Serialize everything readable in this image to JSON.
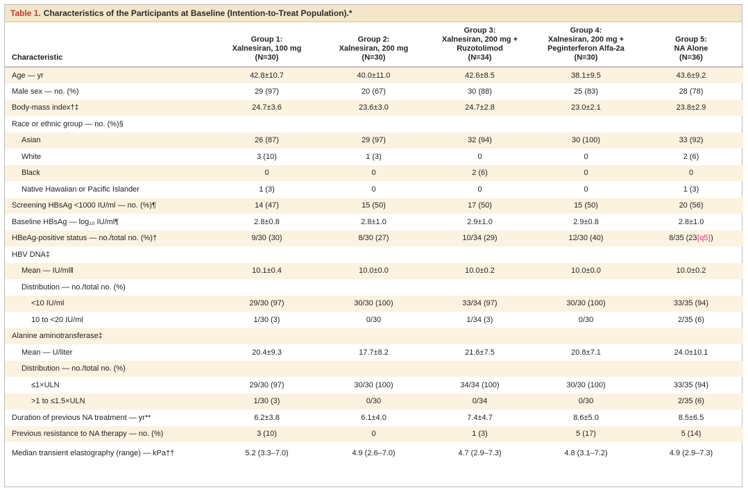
{
  "title": {
    "tag": "Table 1.",
    "text": "Characteristics of the Participants at Baseline (Intention-to-Treat Population).*"
  },
  "header": {
    "characteristic": "Characteristic",
    "groups": [
      [
        "Group 1:",
        "Xalnesiran, 100 mg",
        "(N=30)"
      ],
      [
        "Group 2:",
        "Xalnesiran, 200 mg",
        "(N=30)"
      ],
      [
        "Group 3:",
        "Xalnesiran, 200 mg +",
        "Ruzotolimod",
        "(N=34)"
      ],
      [
        "Group 4:",
        "Xalnesiran, 200 mg +",
        "Peginterferon Alfa-2a",
        "(N=30)"
      ],
      [
        "Group 5:",
        "NA Alone",
        "(N=36)"
      ]
    ]
  },
  "rows": [
    {
      "label": "Age — yr",
      "indent": 0,
      "values": [
        "42.8±10.7",
        "40.0±11.0",
        "42.6±8.5",
        "38.1±9.5",
        "43.6±9.2"
      ]
    },
    {
      "label": "Male sex — no. (%)",
      "indent": 0,
      "values": [
        "29 (97)",
        "20 (67)",
        "30 (88)",
        "25 (83)",
        "28 (78)"
      ]
    },
    {
      "label": "Body-mass index†‡",
      "indent": 0,
      "values": [
        "24.7±3.6",
        "23.6±3.0",
        "24.7±2.8",
        "23.0±2.1",
        "23.8±2.9"
      ]
    },
    {
      "label": "Race or ethnic group — no. (%)§",
      "indent": 0,
      "values": [
        "",
        "",
        "",
        "",
        ""
      ]
    },
    {
      "label": "Asian",
      "indent": 1,
      "values": [
        "26 (87)",
        "29 (97)",
        "32 (94)",
        "30 (100)",
        "33 (92)"
      ]
    },
    {
      "label": "White",
      "indent": 1,
      "values": [
        "3 (10)",
        "1 (3)",
        "0",
        "0",
        "2 (6)"
      ]
    },
    {
      "label": "Black",
      "indent": 1,
      "values": [
        "0",
        "0",
        "2 (6)",
        "0",
        "0"
      ]
    },
    {
      "label": "Native Hawaiian or Pacific Islander",
      "indent": 1,
      "values": [
        "1 (3)",
        "0",
        "0",
        "0",
        "1 (3)"
      ]
    },
    {
      "label": "Screening HBsAg <1000 IU/ml — no. (%)¶",
      "indent": 0,
      "values": [
        "14 (47)",
        "15 (50)",
        "17 (50)",
        "15 (50)",
        "20 (56)"
      ]
    },
    {
      "label": "Baseline HBsAg — log₁₀ IU/ml¶",
      "indent": 0,
      "values": [
        "2.8±0.8",
        "2.8±1.0",
        "2.9±1.0",
        "2.9±0.8",
        "2.8±1.0"
      ]
    },
    {
      "label": "HBeAg-positive status — no./total no. (%)†",
      "indent": 0,
      "values": [
        "9/30 (30)",
        "8/30 (27)",
        "10/34 (29)",
        "12/30 (40)",
        "8/35 (23{q5})"
      ]
    },
    {
      "label": "HBV DNA‡",
      "indent": 0,
      "values": [
        "",
        "",
        "",
        "",
        ""
      ]
    },
    {
      "label": "Mean — IU/ml‖",
      "indent": 1,
      "values": [
        "10.1±0.4",
        "10.0±0.0",
        "10.0±0.2",
        "10.0±0.0",
        "10.0±0.2"
      ]
    },
    {
      "label": "Distribution — no./total no. (%)",
      "indent": 1,
      "values": [
        "",
        "",
        "",
        "",
        ""
      ]
    },
    {
      "label": "<10 IU/ml",
      "indent": 2,
      "values": [
        "29/30 (97)",
        "30/30 (100)",
        "33/34 (97)",
        "30/30 (100)",
        "33/35 (94)"
      ]
    },
    {
      "label": "10 to <20 IU/ml",
      "indent": 2,
      "values": [
        "1/30 (3)",
        "0/30",
        "1/34 (3)",
        "0/30",
        "2/35 (6)"
      ]
    },
    {
      "label": "Alanine aminotransferase‡",
      "indent": 0,
      "values": [
        "",
        "",
        "",
        "",
        ""
      ]
    },
    {
      "label": "Mean — U/liter",
      "indent": 1,
      "values": [
        "20.4±9.3",
        "17.7±8.2",
        "21.6±7.5",
        "20.8±7.1",
        "24.0±10.1"
      ]
    },
    {
      "label": "Distribution — no./total no. (%)",
      "indent": 1,
      "values": [
        "",
        "",
        "",
        "",
        ""
      ]
    },
    {
      "label": "≤1×ULN",
      "indent": 2,
      "values": [
        "29/30 (97)",
        "30/30 (100)",
        "34/34 (100)",
        "30/30 (100)",
        "33/35 (94)"
      ]
    },
    {
      "label": ">1 to ≤1.5×ULN",
      "indent": 2,
      "values": [
        "1/30 (3)",
        "0/30",
        "0/34",
        "0/30",
        "2/35 (6)"
      ]
    },
    {
      "label": "Duration of previous NA treatment — yr**",
      "indent": 0,
      "values": [
        "6.2±3.8",
        "6.1±4.0",
        "7.4±4.7",
        "8.6±5.0",
        "8.5±6.5"
      ]
    },
    {
      "label": "Previous resistance to NA therapy — no. (%)",
      "indent": 0,
      "values": [
        "3 (10)",
        "0",
        "1 (3)",
        "5 (17)",
        "5 (14)"
      ]
    },
    {
      "label": "Median transient elastography (range) — kPa††",
      "indent": 0,
      "tall": true,
      "values": [
        "5.2 (3.3–7.0)",
        "4.9 (2.6–7.0)",
        "4.7 (2.9–7.3)",
        "4.8 (3.1–7.2)",
        "4.9 (2.9–7.3)"
      ]
    }
  ]
}
